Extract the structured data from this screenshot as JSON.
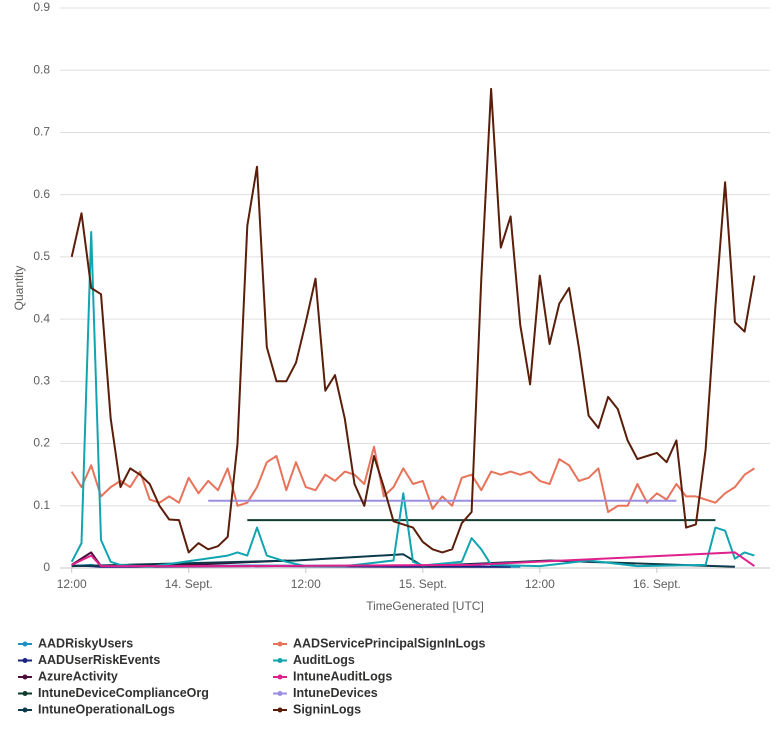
{
  "chart_data": {
    "type": "line",
    "x_label": "TimeGenerated [UTC]",
    "y_label": "Quantity",
    "xlim": [
      10.8,
      83.6
    ],
    "xticks": [
      {
        "value": 12,
        "label": "12:00"
      },
      {
        "value": 24,
        "label": "14. Sept."
      },
      {
        "value": 36,
        "label": "12:00"
      },
      {
        "value": 48,
        "label": "15. Sept."
      },
      {
        "value": 60,
        "label": "12:00"
      },
      {
        "value": 72,
        "label": "16. Sept."
      }
    ],
    "ylim": [
      0,
      0.9
    ],
    "yticks": [
      0,
      0.1,
      0.2,
      0.3,
      0.4,
      0.5,
      0.6,
      0.7,
      0.8,
      0.9
    ],
    "grid": true,
    "series": [
      {
        "name": "AADRiskyUsers",
        "color": "#1f8fca",
        "x": [
          12,
          14,
          15,
          30,
          45,
          58
        ],
        "values": [
          0.003,
          0.005,
          0.002,
          0.004,
          0.003,
          0.002
        ]
      },
      {
        "name": "AADUserRiskEvents",
        "color": "#1a237e",
        "x": [
          12,
          14,
          15,
          33,
          46,
          49,
          57
        ],
        "values": [
          0.004,
          0.003,
          0.002,
          0.003,
          0.002,
          0.002,
          0.002
        ]
      },
      {
        "name": "AzureActivity",
        "color": "#4b0d3a",
        "x": [
          12,
          14,
          15,
          24,
          34
        ],
        "values": [
          0.005,
          0.025,
          0.003,
          0.005,
          0.012
        ]
      },
      {
        "name": "IntuneDeviceComplianceOrg",
        "color": "#0e3b2e",
        "x": [
          30,
          78
        ],
        "values": [
          0.077,
          0.077
        ]
      },
      {
        "name": "IntuneOperationalLogs",
        "color": "#0b3a4a",
        "x": [
          12,
          35,
          46,
          48,
          61,
          80
        ],
        "values": [
          0.003,
          0.012,
          0.022,
          0.003,
          0.012,
          0.002
        ]
      },
      {
        "name": "AADServicePrincipalSignInLogs",
        "color": "#e8735a",
        "x": [
          12,
          13,
          14,
          15,
          16,
          17,
          18,
          19,
          20,
          21,
          22,
          23,
          24,
          25,
          26,
          27,
          28,
          29,
          30,
          31,
          32,
          33,
          34,
          35,
          36,
          37,
          38,
          39,
          40,
          41,
          42,
          43,
          44,
          45,
          46,
          47,
          48,
          49,
          50,
          51,
          52,
          53,
          54,
          55,
          56,
          57,
          58,
          59,
          60,
          61,
          62,
          63,
          64,
          65,
          66,
          67,
          68,
          69,
          70,
          71,
          72,
          73,
          74,
          75,
          76,
          77,
          78,
          79,
          80,
          81,
          82
        ],
        "values": [
          0.155,
          0.13,
          0.165,
          0.115,
          0.13,
          0.14,
          0.13,
          0.155,
          0.11,
          0.105,
          0.115,
          0.105,
          0.145,
          0.12,
          0.14,
          0.125,
          0.16,
          0.1,
          0.105,
          0.13,
          0.17,
          0.18,
          0.125,
          0.17,
          0.13,
          0.125,
          0.15,
          0.14,
          0.155,
          0.15,
          0.135,
          0.195,
          0.115,
          0.13,
          0.16,
          0.135,
          0.14,
          0.095,
          0.115,
          0.1,
          0.145,
          0.15,
          0.125,
          0.155,
          0.15,
          0.155,
          0.15,
          0.155,
          0.14,
          0.135,
          0.175,
          0.165,
          0.14,
          0.145,
          0.16,
          0.09,
          0.1,
          0.1,
          0.135,
          0.105,
          0.12,
          0.11,
          0.135,
          0.115,
          0.115,
          0.11,
          0.105,
          0.12,
          0.13,
          0.15,
          0.16
        ]
      },
      {
        "name": "AuditLogs",
        "color": "#10a5b0",
        "x": [
          12,
          13,
          14,
          15,
          16,
          17,
          20,
          28,
          29,
          30,
          31,
          32,
          33,
          34,
          36,
          40,
          45,
          46,
          47,
          48,
          52,
          53,
          54,
          55,
          60,
          65,
          70,
          77,
          78,
          79,
          80,
          81,
          82
        ],
        "values": [
          0.01,
          0.04,
          0.54,
          0.045,
          0.01,
          0.005,
          0.002,
          0.02,
          0.025,
          0.02,
          0.065,
          0.02,
          0.015,
          0.01,
          0.003,
          0.003,
          0.012,
          0.12,
          0.01,
          0.004,
          0.01,
          0.048,
          0.03,
          0.005,
          0.003,
          0.012,
          0.003,
          0.005,
          0.065,
          0.06,
          0.015,
          0.025,
          0.02
        ]
      },
      {
        "name": "IntuneAuditLogs",
        "color": "#e0208c",
        "x": [
          12,
          14,
          15,
          30,
          53,
          80,
          82
        ],
        "values": [
          0.005,
          0.02,
          0.003,
          0.003,
          0.005,
          0.025,
          0.003
        ]
      },
      {
        "name": "IntuneDevices",
        "color": "#9b8fe0",
        "x": [
          26,
          74
        ],
        "values": [
          0.108,
          0.108
        ]
      },
      {
        "name": "SigninLogs",
        "color": "#5a1e0a",
        "x": [
          12,
          13,
          14,
          15,
          16,
          17,
          18,
          19,
          20,
          21,
          22,
          23,
          24,
          25,
          26,
          27,
          28,
          29,
          30,
          31,
          32,
          33,
          34,
          35,
          36,
          37,
          38,
          39,
          40,
          41,
          42,
          43,
          44,
          45,
          46,
          47,
          48,
          49,
          50,
          51,
          52,
          53,
          54,
          55,
          56,
          57,
          58,
          59,
          60,
          61,
          62,
          63,
          64,
          65,
          66,
          67,
          68,
          69,
          70,
          71,
          72,
          73,
          74,
          75,
          76,
          77,
          78,
          79,
          80,
          81,
          82
        ],
        "values": [
          0.5,
          0.57,
          0.45,
          0.44,
          0.24,
          0.13,
          0.16,
          0.15,
          0.135,
          0.1,
          0.078,
          0.077,
          0.025,
          0.04,
          0.03,
          0.035,
          0.05,
          0.2,
          0.55,
          0.645,
          0.355,
          0.3,
          0.3,
          0.33,
          0.395,
          0.465,
          0.285,
          0.31,
          0.24,
          0.135,
          0.1,
          0.18,
          0.13,
          0.075,
          0.07,
          0.065,
          0.042,
          0.03,
          0.025,
          0.03,
          0.072,
          0.09,
          0.465,
          0.77,
          0.515,
          0.565,
          0.39,
          0.295,
          0.47,
          0.36,
          0.425,
          0.45,
          0.355,
          0.245,
          0.225,
          0.275,
          0.255,
          0.205,
          0.175,
          0.18,
          0.185,
          0.17,
          0.205,
          0.065,
          0.07,
          0.19,
          0.42,
          0.62,
          0.395,
          0.38,
          0.47
        ]
      }
    ]
  }
}
